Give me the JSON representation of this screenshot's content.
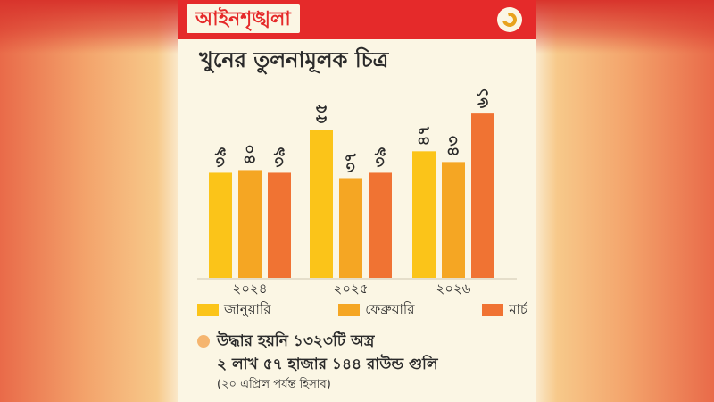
{
  "header": {
    "title": "আইনশৃঙ্খলা"
  },
  "colors": {
    "header_red": "#e52a2a",
    "january": "#fbc419",
    "february": "#f5a623",
    "march": "#f07333"
  },
  "icons": {
    "logo": "newspaper-logo-icon",
    "note_dot": "bullet-dot-icon"
  },
  "chart_data": {
    "type": "bar",
    "title": "খুনের তুলনামূলক চিত্র",
    "categories": [
      "২০২৪",
      "২০২৫",
      "২০২৬"
    ],
    "series": [
      {
        "name": "জানুয়ারি",
        "values": [
          39,
          55,
          47
        ],
        "labels": [
          "৩৯",
          "৫৫",
          "৪৭"
        ]
      },
      {
        "name": "ফেব্রুয়ারি",
        "values": [
          40,
          37,
          43
        ],
        "labels": [
          "৪০",
          "৩৭",
          "৪৩"
        ]
      },
      {
        "name": "মার্চ",
        "values": [
          39,
          39,
          61
        ],
        "labels": [
          "৩৯",
          "৩৯",
          "৬১"
        ]
      }
    ],
    "legend_position": "bottom",
    "grid": false,
    "ylim": [
      0,
      70
    ]
  },
  "note": {
    "line1": "উদ্ধার হয়নি ১৩২৩টি অস্ত্র",
    "line2": "২ লাখ ৫৭ হাজার ১৪৪ রাউন্ড গুলি",
    "line3": "(২০ এপ্রিল পর্যন্ত হিসাব)"
  }
}
